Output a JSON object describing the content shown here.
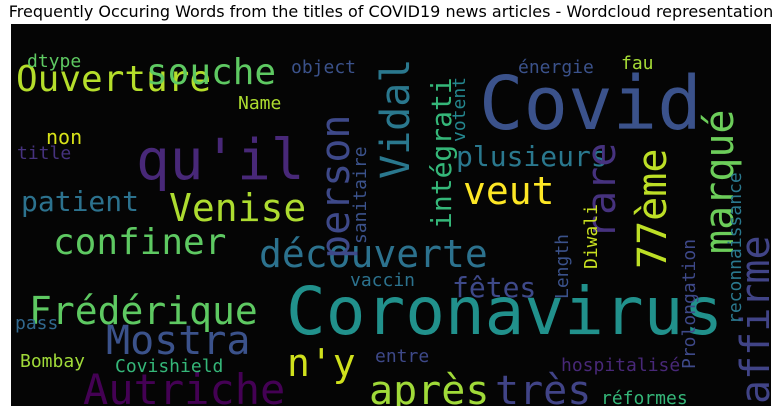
{
  "chart_data": {
    "type": "wordcloud",
    "title": "Frequently Occuring Words from the titles of COVID19 news articles - Wordcloud representation",
    "background": "#050505",
    "words": [
      {
        "text": "Covid",
        "size": 74,
        "color": "#3b528b",
        "orientation": "horizontal"
      },
      {
        "text": "Coronavirus",
        "size": 66,
        "color": "#21918c",
        "orientation": "horizontal"
      },
      {
        "text": "qu'il",
        "size": 56,
        "color": "#482878",
        "orientation": "horizontal"
      },
      {
        "text": "Ouverture",
        "size": 36,
        "color": "#b5de2b",
        "orientation": "horizontal"
      },
      {
        "text": "souche",
        "size": 36,
        "color": "#5ec962",
        "orientation": "horizontal"
      },
      {
        "text": "Venise",
        "size": 38,
        "color": "#addc30",
        "orientation": "horizontal"
      },
      {
        "text": "confiner",
        "size": 36,
        "color": "#5ec962",
        "orientation": "horizontal"
      },
      {
        "text": "découverte",
        "size": 38,
        "color": "#2c728e",
        "orientation": "horizontal"
      },
      {
        "text": "Frédérique",
        "size": 38,
        "color": "#5ec962",
        "orientation": "horizontal"
      },
      {
        "text": "Mostra",
        "size": 40,
        "color": "#3b528b",
        "orientation": "horizontal"
      },
      {
        "text": "Autriche",
        "size": 42,
        "color": "#440154",
        "orientation": "horizontal"
      },
      {
        "text": "après",
        "size": 40,
        "color": "#a0da39",
        "orientation": "horizontal"
      },
      {
        "text": "très",
        "size": 40,
        "color": "#414487",
        "orientation": "horizontal"
      },
      {
        "text": "n'y",
        "size": 38,
        "color": "#d0e11c",
        "orientation": "horizontal"
      },
      {
        "text": "veut",
        "size": 38,
        "color": "#fde725",
        "orientation": "horizontal"
      },
      {
        "text": "plusieurs",
        "size": 28,
        "color": "#2a788e",
        "orientation": "horizontal"
      },
      {
        "text": "patient",
        "size": 28,
        "color": "#2c728e",
        "orientation": "horizontal"
      },
      {
        "text": "fêtes",
        "size": 28,
        "color": "#3e4989",
        "orientation": "horizontal"
      },
      {
        "text": "Vidal",
        "size": 40,
        "color": "#2a788e",
        "orientation": "vertical"
      },
      {
        "text": "person",
        "size": 40,
        "color": "#3e4989",
        "orientation": "vertical"
      },
      {
        "text": "intégrati",
        "size": 28,
        "color": "#35b779",
        "orientation": "vertical"
      },
      {
        "text": "rare",
        "size": 40,
        "color": "#46327e",
        "orientation": "vertical"
      },
      {
        "text": "77ème",
        "size": 40,
        "color": "#bddf26",
        "orientation": "vertical"
      },
      {
        "text": "marqué",
        "size": 40,
        "color": "#6ccd5a",
        "orientation": "vertical"
      },
      {
        "text": "affirme",
        "size": 40,
        "color": "#414487",
        "orientation": "vertical"
      },
      {
        "text": "sanitaire",
        "size": 18,
        "color": "#3b528b",
        "orientation": "vertical"
      },
      {
        "text": "votent",
        "size": 18,
        "color": "#24868e",
        "orientation": "vertical"
      },
      {
        "text": "Length",
        "size": 18,
        "color": "#3b528b",
        "orientation": "vertical"
      },
      {
        "text": "Diwali",
        "size": 18,
        "color": "#c8e020",
        "orientation": "vertical"
      },
      {
        "text": "Prolongation",
        "size": 18,
        "color": "#3e4989",
        "orientation": "vertical"
      },
      {
        "text": "reconnaissance",
        "size": 18,
        "color": "#2a788e",
        "orientation": "vertical"
      },
      {
        "text": "dtype",
        "size": 18,
        "color": "#5ec962",
        "orientation": "horizontal"
      },
      {
        "text": "object",
        "size": 18,
        "color": "#3b528b",
        "orientation": "horizontal"
      },
      {
        "text": "énergie",
        "size": 18,
        "color": "#3b528b",
        "orientation": "horizontal"
      },
      {
        "text": "fau",
        "size": 18,
        "color": "#a5db36",
        "orientation": "horizontal"
      },
      {
        "text": "Name",
        "size": 18,
        "color": "#addc30",
        "orientation": "horizontal"
      },
      {
        "text": "non",
        "size": 20,
        "color": "#d8e219",
        "orientation": "horizontal"
      },
      {
        "text": "title",
        "size": 18,
        "color": "#46327e",
        "orientation": "horizontal"
      },
      {
        "text": "vaccin",
        "size": 18,
        "color": "#2c728e",
        "orientation": "horizontal"
      },
      {
        "text": "pass",
        "size": 18,
        "color": "#31688e",
        "orientation": "horizontal"
      },
      {
        "text": "Bombay",
        "size": 18,
        "color": "#a0da39",
        "orientation": "horizontal"
      },
      {
        "text": "Covishield",
        "size": 18,
        "color": "#35b779",
        "orientation": "horizontal"
      },
      {
        "text": "entre",
        "size": 18,
        "color": "#3e4989",
        "orientation": "horizontal"
      },
      {
        "text": "hospitalisé",
        "size": 18,
        "color": "#482878",
        "orientation": "horizontal"
      },
      {
        "text": "réformes",
        "size": 18,
        "color": "#35b779",
        "orientation": "horizontal"
      }
    ]
  }
}
